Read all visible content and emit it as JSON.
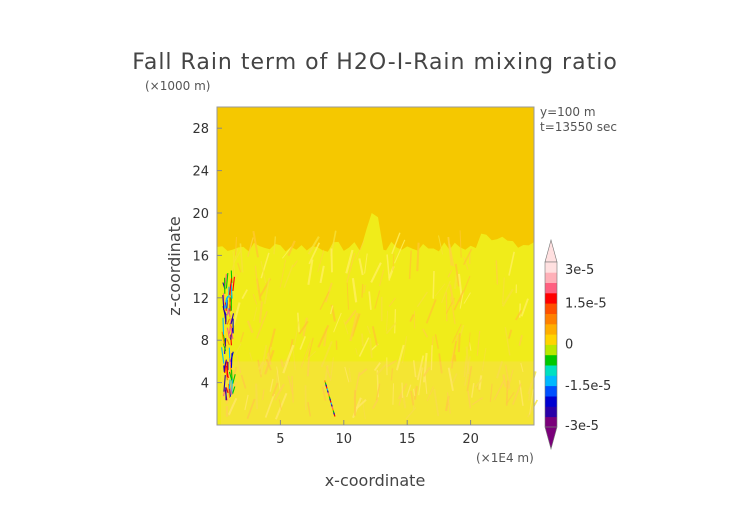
{
  "chart_data": {
    "type": "heatmap",
    "title": "Fall Rain term of H2O-I-Rain mixing ratio",
    "xlabel": "x-coordinate",
    "ylabel": "z-coordinate",
    "x_unit": "(×1E4 m)",
    "y_unit": "(×1000 m)",
    "annotations": [
      "y=100 m",
      "t=13550 sec"
    ],
    "xlim": [
      0,
      25
    ],
    "ylim": [
      0,
      30
    ],
    "x_ticks": [
      5,
      10,
      15,
      20
    ],
    "y_ticks": [
      4,
      8,
      12,
      16,
      20,
      24,
      28
    ],
    "colorbar": {
      "range": [
        -3e-05,
        3e-05
      ],
      "tick_labels": [
        "3e-5",
        "1.5e-5",
        "0",
        "-1.5e-5",
        "-3e-5"
      ],
      "tick_values": [
        3e-05,
        1.5e-05,
        0,
        -1.5e-05,
        -3e-05
      ],
      "colors": [
        "#7a007a",
        "#2a00a8",
        "#0000d0",
        "#0050ff",
        "#00b8ff",
        "#00e0c0",
        "#00c800",
        "#b8e800",
        "#ffd400",
        "#ffae00",
        "#ff8000",
        "#ff5000",
        "#ff0000",
        "#ff6080",
        "#ffb0b8",
        "#ffe0e0"
      ]
    },
    "field_regions": [
      {
        "description": "background near zero",
        "x_range": [
          0,
          25
        ],
        "z_range": [
          0,
          30
        ],
        "color": "#f5c800"
      },
      {
        "description": "weak positive layer",
        "x_range": [
          0,
          25
        ],
        "z_range": [
          0,
          17.5
        ],
        "color": "#f0ec1a"
      },
      {
        "description": "turret near x≈12.3",
        "x_range": [
          11.2,
          13.2
        ],
        "z_range": [
          16,
          20
        ],
        "color": "#f0ec1a"
      },
      {
        "description": "mixed signal column",
        "x_range": [
          0.5,
          1.3
        ],
        "z_range": [
          2,
          14.5
        ]
      },
      {
        "description": "mixed signal streak",
        "x_range": [
          8.5,
          9.3
        ],
        "z_range": [
          0.8,
          4.2
        ]
      }
    ]
  }
}
